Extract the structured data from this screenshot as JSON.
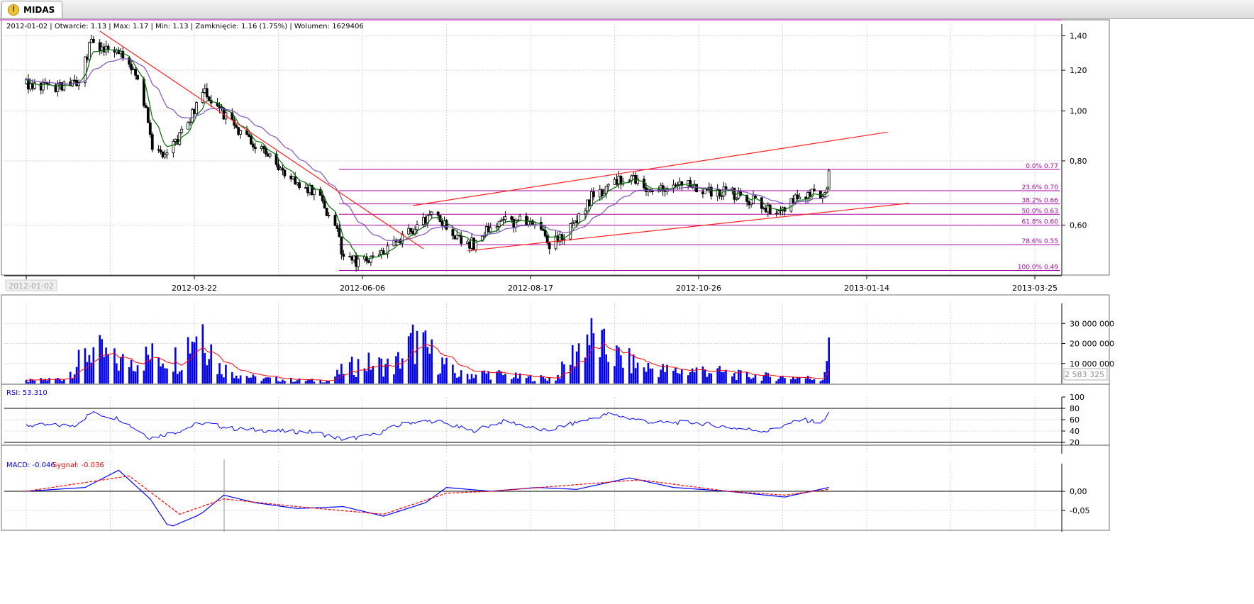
{
  "tab": {
    "label": "MIDAS",
    "icon": "warning-icon"
  },
  "header": {
    "date": "2012-01-02",
    "open_label": "Otwarcie: 1.13",
    "max_label": "Max: 1.17",
    "min_label": "Min: 1.13",
    "close_label": "Zamknięcie: 1.16 (1.75%)",
    "volume_label": "Wolumen: 1629406",
    "sep": " | "
  },
  "colors": {
    "bull": "#ffffff",
    "bear": "#000000",
    "ma_short": "#007000",
    "ma_long": "#8050c0",
    "trend": "#ff2020",
    "fib": "#aa00aa",
    "volume": "#0000ee",
    "vol_ma": "#ff0000",
    "rsi": "#0000ff",
    "macd": "#0000ff",
    "signal": "#ff0000"
  },
  "chart_data": [
    {
      "type": "candlestick",
      "title": "",
      "x_tick_labels": [
        "2012-01-02",
        "2012-03-22",
        "2012-06-06",
        "2012-08-17",
        "2012-10-26",
        "2013-01-14",
        "2013-03-25"
      ],
      "y_ticks": [
        1.4,
        1.2,
        1.0,
        0.8,
        0.6
      ],
      "y_tick_labels": [
        "1,40",
        "1,20",
        "1,00",
        "0,80",
        "0,60"
      ],
      "ylim": [
        0.48,
        1.42
      ],
      "y_scale": "log",
      "grid": true,
      "fib_levels": [
        {
          "level": 0.77,
          "label": "0.0% 0.77"
        },
        {
          "level": 0.7,
          "label": "23.6% 0.70"
        },
        {
          "level": 0.66,
          "label": "38.2% 0.66"
        },
        {
          "level": 0.63,
          "label": "50.0% 0.63"
        },
        {
          "level": 0.6,
          "label": "61.8% 0.60"
        },
        {
          "level": 0.55,
          "label": "78.6% 0.55"
        },
        {
          "level": 0.49,
          "label": "100.0% 0.49"
        }
      ],
      "trendlines": [
        {
          "from": [
            "2012-02-06",
            1.43
          ],
          "to": [
            "2012-07-09",
            0.54
          ]
        },
        {
          "from": [
            "2012-07-04",
            0.655
          ],
          "to": [
            "2013-02-15",
            0.91
          ]
        },
        {
          "from": [
            "2012-07-30",
            0.535
          ],
          "to": [
            "2013-02-25",
            0.662
          ]
        }
      ],
      "series": {
        "close_path": [
          [
            "2012-01-02",
            1.13
          ],
          [
            "2012-01-10",
            1.11
          ],
          [
            "2012-01-20",
            1.12
          ],
          [
            "2012-01-27",
            1.15
          ],
          [
            "2012-02-02",
            1.36
          ],
          [
            "2012-02-10",
            1.31
          ],
          [
            "2012-02-17",
            1.27
          ],
          [
            "2012-02-22",
            1.2
          ],
          [
            "2012-02-27",
            1.04
          ],
          [
            "2012-03-02",
            0.86
          ],
          [
            "2012-03-08",
            0.82
          ],
          [
            "2012-03-14",
            0.88
          ],
          [
            "2012-03-20",
            0.97
          ],
          [
            "2012-03-26",
            1.1
          ],
          [
            "2012-04-02",
            1.01
          ],
          [
            "2012-04-10",
            0.93
          ],
          [
            "2012-04-20",
            0.86
          ],
          [
            "2012-04-30",
            0.79
          ],
          [
            "2012-05-08",
            0.73
          ],
          [
            "2012-05-18",
            0.7
          ],
          [
            "2012-05-28",
            0.6
          ],
          [
            "2012-06-01",
            0.52
          ],
          [
            "2012-06-08",
            0.51
          ],
          [
            "2012-06-15",
            0.52
          ],
          [
            "2012-06-22",
            0.54
          ],
          [
            "2012-06-29",
            0.57
          ],
          [
            "2012-07-06",
            0.6
          ],
          [
            "2012-07-13",
            0.63
          ],
          [
            "2012-07-20",
            0.6
          ],
          [
            "2012-07-27",
            0.56
          ],
          [
            "2012-08-03",
            0.55
          ],
          [
            "2012-08-10",
            0.6
          ],
          [
            "2012-08-17",
            0.61
          ],
          [
            "2012-08-24",
            0.61
          ],
          [
            "2012-08-31",
            0.61
          ],
          [
            "2012-09-07",
            0.55
          ],
          [
            "2012-09-14",
            0.57
          ],
          [
            "2012-09-21",
            0.62
          ],
          [
            "2012-09-28",
            0.69
          ],
          [
            "2012-10-05",
            0.71
          ],
          [
            "2012-10-12",
            0.74
          ],
          [
            "2012-10-19",
            0.73
          ],
          [
            "2012-10-26",
            0.69
          ],
          [
            "2012-11-02",
            0.71
          ],
          [
            "2012-11-09",
            0.72
          ],
          [
            "2012-11-16",
            0.71
          ],
          [
            "2012-11-23",
            0.7
          ],
          [
            "2012-11-30",
            0.7
          ],
          [
            "2012-12-07",
            0.68
          ],
          [
            "2012-12-14",
            0.67
          ],
          [
            "2012-12-21",
            0.64
          ],
          [
            "2012-12-28",
            0.65
          ],
          [
            "2013-01-04",
            0.69
          ],
          [
            "2013-01-11",
            0.69
          ],
          [
            "2013-01-16",
            0.69
          ],
          [
            "2013-01-18",
            0.75
          ]
        ]
      }
    },
    {
      "type": "bar",
      "title": "",
      "series_name": "Wolumen",
      "y_ticks": [
        30000000,
        20000000,
        10000000
      ],
      "y_tick_labels": [
        "30 000 000",
        "20 000 000",
        "10 000 000"
      ],
      "ylim": [
        0,
        40000000
      ],
      "current_value_label": "2 583 325",
      "volume_path": [
        [
          "2012-01-02",
          1500000
        ],
        [
          "2012-01-20",
          3000000
        ],
        [
          "2012-02-02",
          20000000
        ],
        [
          "2012-02-15",
          12000000
        ],
        [
          "2012-03-01",
          16000000
        ],
        [
          "2012-03-15",
          15000000
        ],
        [
          "2012-03-25",
          38000000
        ],
        [
          "2012-04-02",
          10000000
        ],
        [
          "2012-04-20",
          3000000
        ],
        [
          "2012-05-10",
          2000000
        ],
        [
          "2012-05-25",
          1500000
        ],
        [
          "2012-06-01",
          8000000
        ],
        [
          "2012-06-10",
          12000000
        ],
        [
          "2012-06-25",
          10000000
        ],
        [
          "2012-07-05",
          25000000
        ],
        [
          "2012-07-15",
          15000000
        ],
        [
          "2012-07-25",
          5000000
        ],
        [
          "2012-08-10",
          6000000
        ],
        [
          "2012-08-25",
          3500000
        ],
        [
          "2012-09-10",
          3000000
        ],
        [
          "2012-09-25",
          28000000
        ],
        [
          "2012-10-05",
          18000000
        ],
        [
          "2012-10-20",
          10000000
        ],
        [
          "2012-11-05",
          7000000
        ],
        [
          "2012-11-20",
          8000000
        ],
        [
          "2012-12-05",
          5000000
        ],
        [
          "2012-12-20",
          4000000
        ],
        [
          "2013-01-05",
          3500000
        ],
        [
          "2013-01-15",
          2583325
        ],
        [
          "2013-01-18",
          23000000
        ]
      ]
    },
    {
      "type": "line",
      "title": "",
      "series_name": "RSI",
      "value_label": "RSI: 53.310",
      "y_ticks": [
        100,
        80,
        60,
        40,
        20
      ],
      "y_tick_labels": [
        "100",
        "80",
        "60",
        "40",
        "20"
      ],
      "ylim": [
        0,
        100
      ],
      "levels": [
        80,
        20
      ],
      "rsi_path": [
        [
          "2012-01-02",
          50
        ],
        [
          "2012-01-25",
          50
        ],
        [
          "2012-02-02",
          72
        ],
        [
          "2012-02-15",
          62
        ],
        [
          "2012-03-01",
          28
        ],
        [
          "2012-03-15",
          40
        ],
        [
          "2012-03-25",
          55
        ],
        [
          "2012-04-10",
          44
        ],
        [
          "2012-04-30",
          40
        ],
        [
          "2012-05-18",
          38
        ],
        [
          "2012-06-01",
          25
        ],
        [
          "2012-06-15",
          33
        ],
        [
          "2012-07-01",
          55
        ],
        [
          "2012-07-15",
          58
        ],
        [
          "2012-08-01",
          40
        ],
        [
          "2012-08-17",
          58
        ],
        [
          "2012-09-05",
          40
        ],
        [
          "2012-09-20",
          55
        ],
        [
          "2012-10-05",
          70
        ],
        [
          "2012-10-26",
          55
        ],
        [
          "2012-11-15",
          55
        ],
        [
          "2012-12-05",
          45
        ],
        [
          "2012-12-20",
          40
        ],
        [
          "2013-01-05",
          60
        ],
        [
          "2013-01-15",
          55
        ],
        [
          "2013-01-18",
          72
        ]
      ]
    },
    {
      "type": "line",
      "title": "",
      "series": [
        {
          "name": "MACD",
          "value_label": "MACD: -0.046",
          "macd_path": [
            [
              "2012-01-02",
              0
            ],
            [
              "2012-01-30",
              0.01
            ],
            [
              "2012-02-15",
              0.055
            ],
            [
              "2012-03-01",
              -0.02
            ],
            [
              "2012-03-10",
              -0.095
            ],
            [
              "2012-03-25",
              -0.06
            ],
            [
              "2012-04-05",
              -0.01
            ],
            [
              "2012-04-20",
              -0.03
            ],
            [
              "2012-05-10",
              -0.045
            ],
            [
              "2012-06-01",
              -0.04
            ],
            [
              "2012-06-20",
              -0.065
            ],
            [
              "2012-07-10",
              -0.03
            ],
            [
              "2012-07-20",
              0.01
            ],
            [
              "2012-08-10",
              0
            ],
            [
              "2012-09-01",
              0.01
            ],
            [
              "2012-09-20",
              0.005
            ],
            [
              "2012-10-15",
              0.035
            ],
            [
              "2012-11-05",
              0.01
            ],
            [
              "2012-12-01",
              0
            ],
            [
              "2012-12-28",
              -0.015
            ],
            [
              "2013-01-18",
              0.01
            ]
          ]
        },
        {
          "name": "Sygnał",
          "value_label": "Sygnał: -0.036",
          "signal_path": [
            [
              "2012-01-02",
              0
            ],
            [
              "2012-02-20",
              0.04
            ],
            [
              "2012-03-15",
              -0.06
            ],
            [
              "2012-04-05",
              -0.02
            ],
            [
              "2012-05-10",
              -0.04
            ],
            [
              "2012-06-20",
              -0.06
            ],
            [
              "2012-07-20",
              -0.005
            ],
            [
              "2012-08-10",
              0.0
            ],
            [
              "2012-10-20",
              0.03
            ],
            [
              "2012-12-01",
              0.0
            ],
            [
              "2012-12-28",
              -0.01
            ],
            [
              "2013-01-18",
              0.005
            ]
          ]
        }
      ],
      "y_ticks": [
        0.0,
        -0.05
      ],
      "y_tick_labels": [
        "0,00",
        "-0,05"
      ],
      "ylim": [
        -0.11,
        0.08
      ]
    }
  ]
}
